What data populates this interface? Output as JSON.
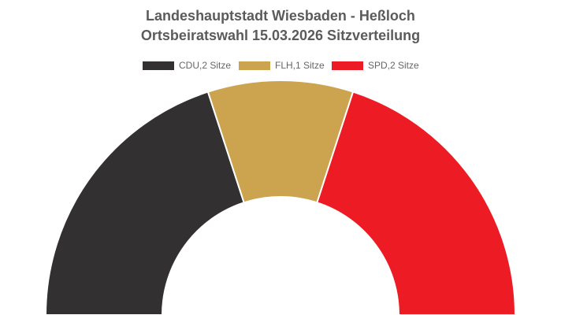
{
  "chart_data": {
    "type": "pie",
    "variant": "half-doughnut",
    "title_line1": "Landeshauptstadt Wiesbaden - Heßloch",
    "title_line2": "Ortsbeiratswahl 15.03.2026 Sitzverteilung",
    "legend_position": "top-center",
    "series": [
      {
        "label": "CDU,2 Sitze",
        "value": 2,
        "color": "#323031"
      },
      {
        "label": "FLH,1 Sitze",
        "value": 1,
        "color": "#cca44f"
      },
      {
        "label": "SPD,2 Sitze",
        "value": 2,
        "color": "#ed1c24"
      }
    ]
  }
}
